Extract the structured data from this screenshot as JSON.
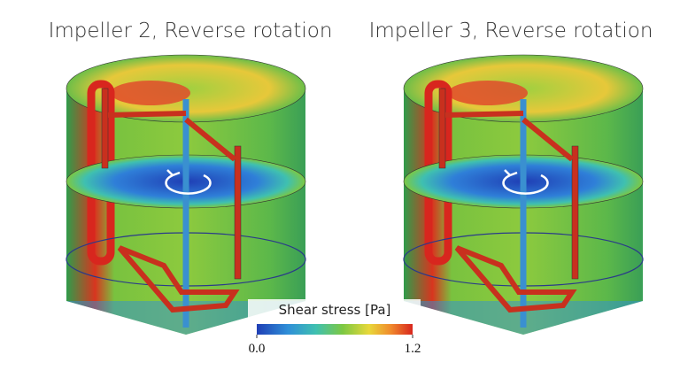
{
  "panels": [
    {
      "title": "Impeller 2, Reverse rotation"
    },
    {
      "title": "Impeller 3, Reverse rotation"
    }
  ],
  "colorbar": {
    "label": "Shear stress [Pa]",
    "ticks": [
      {
        "value": 0,
        "label": "0.0"
      },
      {
        "value": 1.2,
        "label": "1.2"
      }
    ]
  }
}
